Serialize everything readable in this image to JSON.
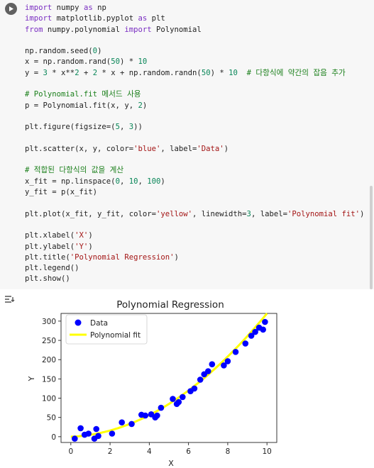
{
  "code_cell": {
    "lines": [
      [
        {
          "t": "import",
          "c": "kw"
        },
        {
          "t": " numpy "
        },
        {
          "t": "as",
          "c": "kw"
        },
        {
          "t": " np"
        }
      ],
      [
        {
          "t": "import",
          "c": "kw"
        },
        {
          "t": " matplotlib.pyplot "
        },
        {
          "t": "as",
          "c": "kw"
        },
        {
          "t": " plt"
        }
      ],
      [
        {
          "t": "from",
          "c": "kw"
        },
        {
          "t": " numpy.polynomial "
        },
        {
          "t": "import",
          "c": "kw"
        },
        {
          "t": " Polynomial"
        }
      ],
      [],
      [
        {
          "t": "np.random.seed("
        },
        {
          "t": "0",
          "c": "num"
        },
        {
          "t": ")"
        }
      ],
      [
        {
          "t": "x = np.random.rand("
        },
        {
          "t": "50",
          "c": "num"
        },
        {
          "t": ") * "
        },
        {
          "t": "10",
          "c": "num"
        }
      ],
      [
        {
          "t": "y = "
        },
        {
          "t": "3",
          "c": "num"
        },
        {
          "t": " * x**"
        },
        {
          "t": "2",
          "c": "num"
        },
        {
          "t": " + "
        },
        {
          "t": "2",
          "c": "num"
        },
        {
          "t": " * x + np.random.randn("
        },
        {
          "t": "50",
          "c": "num"
        },
        {
          "t": ") * "
        },
        {
          "t": "10",
          "c": "num"
        },
        {
          "t": "  "
        },
        {
          "t": "# 다항식에 약간의 잡음 추가",
          "c": "cm"
        }
      ],
      [],
      [
        {
          "t": "# Polynomial.fit 메서드 사용",
          "c": "cm"
        }
      ],
      [
        {
          "t": "p = Polynomial.fit(x, y, "
        },
        {
          "t": "2",
          "c": "num"
        },
        {
          "t": ")"
        }
      ],
      [],
      [
        {
          "t": "plt.figure(figsize=("
        },
        {
          "t": "5",
          "c": "num"
        },
        {
          "t": ", "
        },
        {
          "t": "3",
          "c": "num"
        },
        {
          "t": "))"
        }
      ],
      [],
      [
        {
          "t": "plt.scatter(x, y, color="
        },
        {
          "t": "'blue'",
          "c": "str"
        },
        {
          "t": ", label="
        },
        {
          "t": "'Data'",
          "c": "str"
        },
        {
          "t": ")"
        }
      ],
      [],
      [
        {
          "t": "# 적합된 다항식의 값을 계산",
          "c": "cm"
        }
      ],
      [
        {
          "t": "x_fit = np.linspace("
        },
        {
          "t": "0",
          "c": "num"
        },
        {
          "t": ", "
        },
        {
          "t": "10",
          "c": "num"
        },
        {
          "t": ", "
        },
        {
          "t": "100",
          "c": "num"
        },
        {
          "t": ")"
        }
      ],
      [
        {
          "t": "y_fit = p(x_fit)"
        }
      ],
      [],
      [
        {
          "t": "plt.plot(x_fit, y_fit, color="
        },
        {
          "t": "'yellow'",
          "c": "str"
        },
        {
          "t": ", linewidth="
        },
        {
          "t": "3",
          "c": "num"
        },
        {
          "t": ", label="
        },
        {
          "t": "'Polynomial fit'",
          "c": "str"
        },
        {
          "t": ")"
        }
      ],
      [],
      [
        {
          "t": "plt.xlabel("
        },
        {
          "t": "'X'",
          "c": "str"
        },
        {
          "t": ")"
        }
      ],
      [
        {
          "t": "plt.ylabel("
        },
        {
          "t": "'Y'",
          "c": "str"
        },
        {
          "t": ")"
        }
      ],
      [
        {
          "t": "plt.title("
        },
        {
          "t": "'Polynomial Regression'",
          "c": "str"
        },
        {
          "t": ")"
        }
      ],
      [
        {
          "t": "plt.legend()"
        }
      ],
      [
        {
          "t": "plt.show()"
        }
      ]
    ]
  },
  "icons": {
    "run": "play-icon",
    "output": "output-toggle-icon"
  },
  "colors": {
    "keyword": "#7a2ec2",
    "string": "#a31515",
    "number": "#098658",
    "comment": "#1a7f1a",
    "scatter": "#0000ff",
    "fit_line": "#ffff00"
  },
  "chart_data": {
    "type": "scatter",
    "title": "Polynomial Regression",
    "xlabel": "X",
    "ylabel": "Y",
    "xlim": [
      -0.5,
      10.5
    ],
    "ylim": [
      -15,
      320
    ],
    "xticks": [
      0,
      2,
      4,
      6,
      8,
      10
    ],
    "yticks": [
      0,
      50,
      100,
      150,
      200,
      250,
      300
    ],
    "grid": false,
    "legend_position": "upper-left",
    "series": [
      {
        "name": "Data",
        "kind": "scatter",
        "color": "#0000ff",
        "x": [
          0.2,
          0.5,
          0.7,
          0.9,
          1.2,
          1.3,
          1.4,
          2.1,
          2.6,
          3.1,
          3.6,
          3.8,
          4.1,
          4.3,
          4.4,
          4.6,
          5.2,
          5.4,
          5.5,
          5.7,
          6.1,
          6.3,
          6.6,
          6.8,
          7.0,
          7.2,
          7.8,
          8.0,
          8.4,
          8.9,
          9.2,
          9.4,
          9.6,
          9.8,
          9.9
        ],
        "y": [
          -5,
          22,
          5,
          8,
          -5,
          20,
          2,
          8,
          37,
          33,
          57,
          55,
          58,
          50,
          55,
          75,
          98,
          85,
          90,
          103,
          118,
          125,
          148,
          162,
          170,
          188,
          185,
          196,
          220,
          242,
          262,
          272,
          283,
          278,
          298
        ]
      },
      {
        "name": "Polynomial fit",
        "kind": "line",
        "color": "#ffff00",
        "linewidth": 3,
        "coefficients": [
          0,
          2,
          3
        ]
      }
    ]
  }
}
